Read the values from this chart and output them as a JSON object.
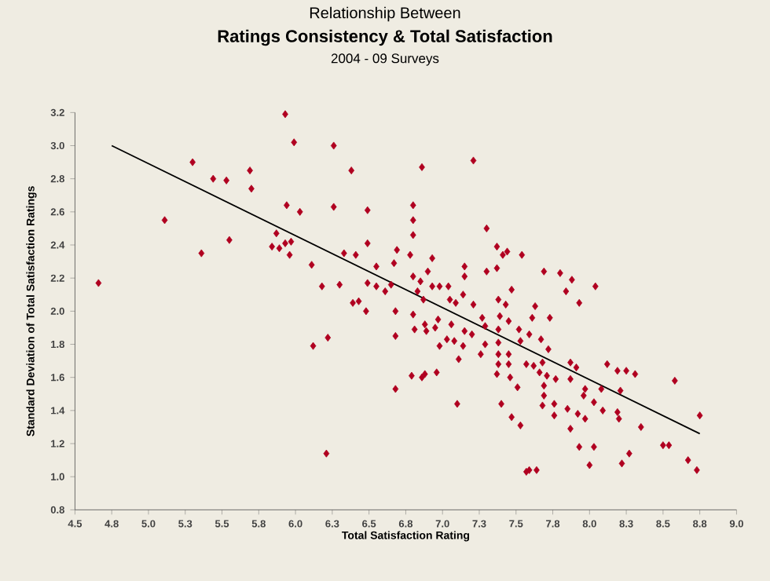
{
  "chart_data": {
    "type": "scatter",
    "title": "Relationship Between",
    "subtitle": "Ratings Consistency & Total Satisfaction",
    "annotations": [
      "2004 - 09 Surveys"
    ],
    "xlabel": "Total Satisfaction Rating",
    "ylabel": "Standard Deviation of Total Satisfaction Ratings",
    "xlim": [
      4.5,
      9.0
    ],
    "ylim": [
      0.8,
      3.2
    ],
    "xticks": [
      {
        "value": 4.5,
        "label": "4.5"
      },
      {
        "value": 4.75,
        "label": "4.8"
      },
      {
        "value": 5.0,
        "label": "5.0"
      },
      {
        "value": 5.25,
        "label": "5.3"
      },
      {
        "value": 5.5,
        "label": "5.5"
      },
      {
        "value": 5.75,
        "label": "5.8"
      },
      {
        "value": 6.0,
        "label": "6.0"
      },
      {
        "value": 6.25,
        "label": "6.3"
      },
      {
        "value": 6.5,
        "label": "6.5"
      },
      {
        "value": 6.75,
        "label": "6.8"
      },
      {
        "value": 7.0,
        "label": "7.0"
      },
      {
        "value": 7.25,
        "label": "7.3"
      },
      {
        "value": 7.5,
        "label": "7.5"
      },
      {
        "value": 7.75,
        "label": "7.8"
      },
      {
        "value": 8.0,
        "label": "8.0"
      },
      {
        "value": 8.25,
        "label": "8.3"
      },
      {
        "value": 8.5,
        "label": "8.5"
      },
      {
        "value": 8.75,
        "label": "8.8"
      },
      {
        "value": 9.0,
        "label": "9.0"
      }
    ],
    "yticks": [
      {
        "value": 0.8,
        "label": "0.8"
      },
      {
        "value": 1.0,
        "label": "1.0"
      },
      {
        "value": 1.2,
        "label": "1.2"
      },
      {
        "value": 1.4,
        "label": "1.4"
      },
      {
        "value": 1.6,
        "label": "1.6"
      },
      {
        "value": 1.8,
        "label": "1.8"
      },
      {
        "value": 2.0,
        "label": "2.0"
      },
      {
        "value": 2.2,
        "label": "2.2"
      },
      {
        "value": 2.4,
        "label": "2.4"
      },
      {
        "value": 2.6,
        "label": "2.6"
      },
      {
        "value": 2.8,
        "label": "2.8"
      },
      {
        "value": 3.0,
        "label": "3.0"
      },
      {
        "value": 3.2,
        "label": "3.2"
      }
    ],
    "grid": false,
    "series": [
      {
        "marker": "diamond",
        "color": "#b00020",
        "x": [
          5.93,
          5.99,
          5.3,
          5.44,
          5.53,
          5.69,
          5.7,
          5.94,
          6.03,
          5.11,
          5.36,
          5.55,
          5.87,
          5.84,
          5.89,
          5.93,
          5.97,
          5.96,
          6.11,
          6.18,
          4.66,
          6.12,
          6.21,
          6.26,
          6.38,
          6.86,
          7.21,
          6.26,
          6.49,
          6.8,
          6.8,
          6.8,
          7.3,
          6.3,
          6.33,
          6.41,
          6.49,
          6.55,
          6.67,
          6.69,
          6.78,
          6.93,
          6.9,
          6.8,
          6.83,
          6.85,
          6.49,
          6.55,
          6.61,
          6.65,
          6.39,
          6.43,
          6.48,
          6.68,
          6.93,
          6.98,
          7.04,
          7.15,
          7.15,
          7.14,
          7.05,
          7.09,
          7.21,
          6.8,
          6.87,
          6.97,
          7.06,
          6.88,
          6.81,
          6.89,
          6.95,
          6.98,
          7.03,
          7.08,
          7.14,
          7.2,
          7.15,
          7.27,
          7.29,
          7.29,
          7.26,
          7.11,
          6.68,
          6.68,
          6.22,
          6.79,
          6.86,
          6.88,
          6.96,
          7.1,
          7.37,
          7.41,
          7.44,
          7.37,
          7.3,
          7.47,
          7.38,
          7.43,
          7.39,
          7.45,
          7.38,
          7.52,
          7.38,
          7.38,
          7.45,
          7.38,
          7.45,
          7.37,
          7.46,
          7.51,
          7.4,
          7.47,
          7.53,
          7.57,
          7.54,
          7.63,
          7.61,
          7.73,
          7.69,
          7.8,
          7.88,
          7.84,
          7.93,
          8.04,
          7.59,
          7.53,
          7.67,
          7.72,
          7.57,
          7.62,
          7.68,
          7.66,
          7.71,
          7.77,
          7.69,
          7.69,
          7.68,
          7.76,
          7.76,
          7.87,
          7.91,
          7.87,
          7.85,
          7.92,
          7.87,
          7.97,
          7.96,
          8.03,
          7.97,
          8.08,
          8.09,
          7.93,
          8.03,
          8.0,
          8.12,
          8.19,
          8.25,
          8.31,
          8.21,
          8.19,
          8.2,
          8.35,
          8.27,
          8.22,
          8.58,
          8.75,
          8.5,
          8.54,
          8.67,
          8.73,
          7.59,
          7.64
        ],
        "values": [
          3.19,
          3.02,
          2.9,
          2.8,
          2.79,
          2.85,
          2.74,
          2.64,
          2.6,
          2.55,
          2.35,
          2.43,
          2.47,
          2.39,
          2.38,
          2.41,
          2.42,
          2.34,
          2.28,
          2.15,
          2.17,
          1.79,
          1.14,
          3.0,
          2.85,
          2.87,
          2.91,
          2.63,
          2.61,
          2.64,
          2.55,
          2.46,
          2.5,
          2.16,
          2.35,
          2.34,
          2.41,
          2.27,
          2.29,
          2.37,
          2.34,
          2.32,
          2.24,
          2.21,
          2.12,
          2.18,
          2.17,
          2.15,
          2.12,
          2.16,
          2.05,
          2.06,
          2.0,
          2.0,
          2.15,
          2.15,
          2.15,
          2.27,
          2.21,
          2.1,
          2.07,
          2.05,
          2.04,
          1.98,
          2.07,
          1.95,
          1.92,
          1.92,
          1.89,
          1.88,
          1.9,
          1.79,
          1.83,
          1.82,
          1.79,
          1.86,
          1.88,
          1.96,
          1.91,
          1.8,
          1.74,
          1.71,
          1.85,
          1.53,
          1.84,
          1.61,
          1.6,
          1.62,
          1.63,
          1.44,
          2.39,
          2.34,
          2.36,
          2.26,
          2.24,
          2.13,
          2.07,
          2.04,
          1.97,
          1.94,
          1.89,
          1.89,
          1.81,
          1.74,
          1.74,
          1.68,
          1.68,
          1.62,
          1.6,
          1.54,
          1.44,
          1.36,
          1.31,
          1.03,
          2.34,
          2.03,
          1.96,
          1.96,
          2.24,
          2.23,
          2.19,
          2.12,
          2.05,
          2.15,
          1.86,
          1.82,
          1.83,
          1.77,
          1.68,
          1.67,
          1.69,
          1.63,
          1.61,
          1.59,
          1.55,
          1.49,
          1.43,
          1.44,
          1.37,
          1.69,
          1.66,
          1.59,
          1.41,
          1.38,
          1.29,
          1.53,
          1.49,
          1.45,
          1.35,
          1.53,
          1.4,
          1.18,
          1.18,
          1.07,
          1.68,
          1.64,
          1.64,
          1.62,
          1.52,
          1.39,
          1.35,
          1.3,
          1.14,
          1.08,
          1.58,
          1.37,
          1.19,
          1.19,
          1.1,
          1.04,
          1.04,
          1.04
        ]
      },
      {
        "type": "line",
        "marker": "none",
        "line_style": "solid",
        "color": "#000000",
        "x": [
          4.75,
          8.75
        ],
        "values": [
          3.0,
          1.26
        ]
      }
    ]
  }
}
